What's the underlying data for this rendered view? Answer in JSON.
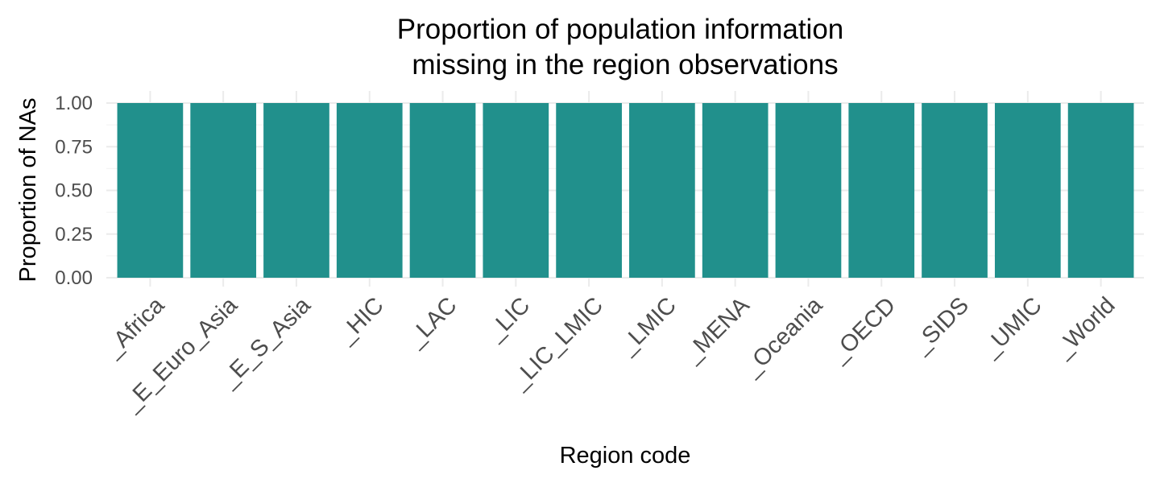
{
  "chart_data": {
    "type": "bar",
    "title_lines": [
      "Proportion of population information",
      "missing in the region observations"
    ],
    "xlabel": "Region code",
    "ylabel": "Proportion of NAs",
    "categories": [
      "_Africa",
      "_E_Euro_Asia",
      "_E_S_Asia",
      "_HIC",
      "_LAC",
      "_LIC",
      "_LIC_LMIC",
      "_LMIC",
      "_MENA",
      "_Oceania",
      "_OECD",
      "_SIDS",
      "_UMIC",
      "_World"
    ],
    "values": [
      1,
      1,
      1,
      1,
      1,
      1,
      1,
      1,
      1,
      1,
      1,
      1,
      1,
      1
    ],
    "ylim": [
      0,
      1
    ],
    "yticks": [
      0,
      0.25,
      0.5,
      0.75,
      1
    ],
    "ytick_labels": [
      "0.00",
      "0.25",
      "0.50",
      "0.75",
      "1.00"
    ],
    "bar_color": "#21908c",
    "grid": true,
    "legend": "none"
  }
}
